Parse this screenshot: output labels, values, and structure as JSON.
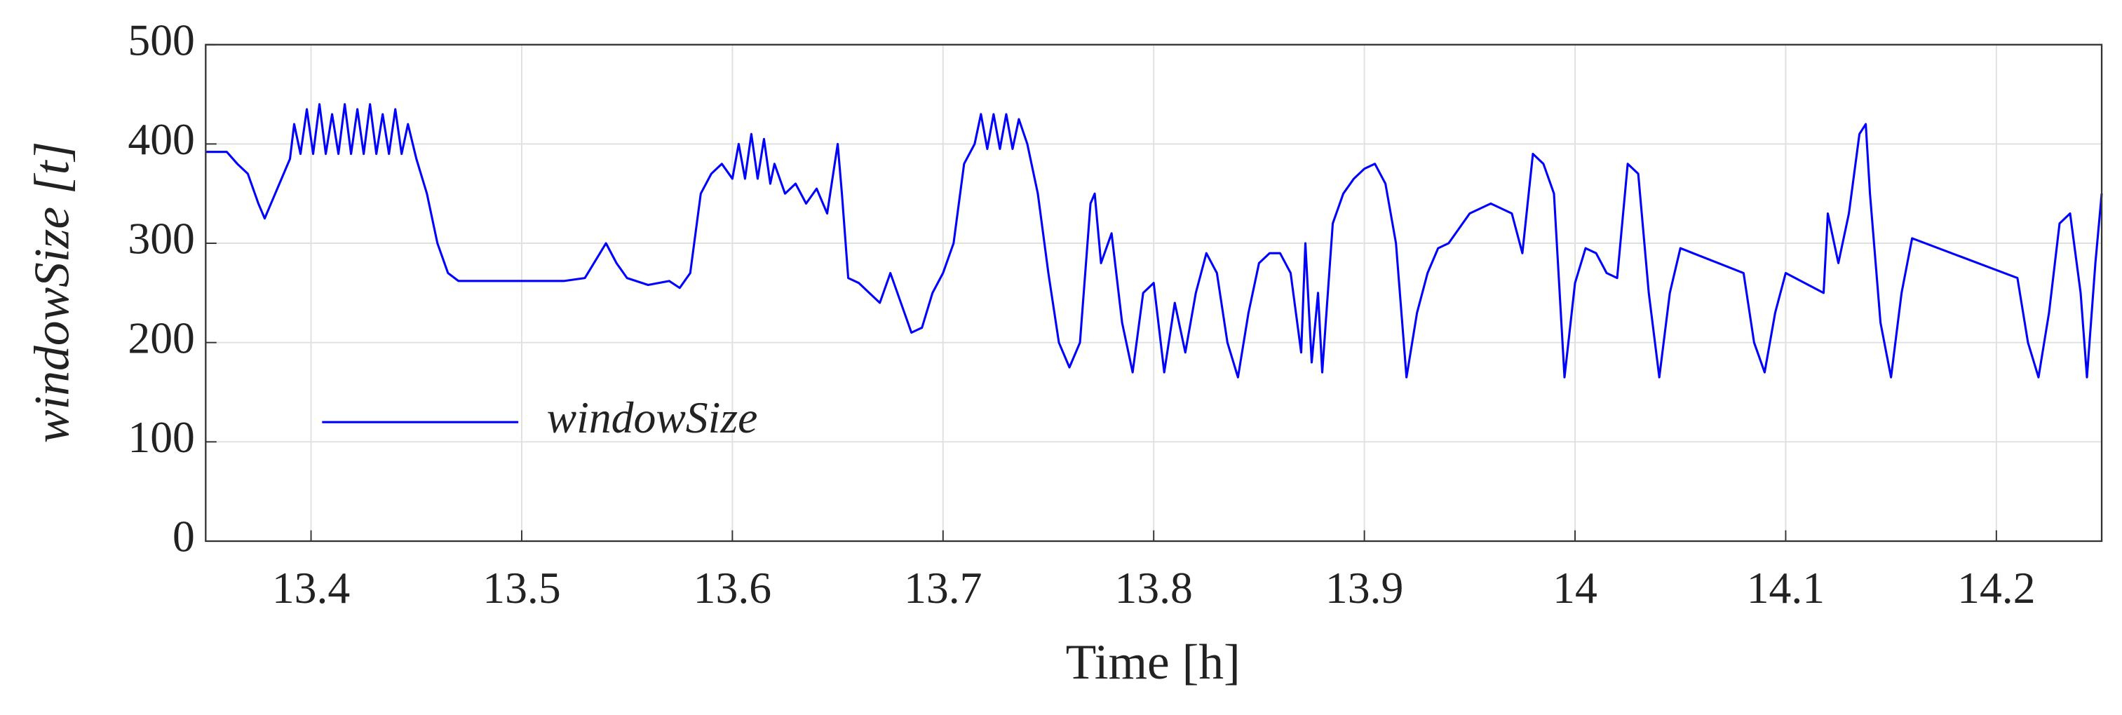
{
  "chart_data": {
    "type": "line",
    "xlabel": "Time [h]",
    "ylabel": "windowSize [t]",
    "xlim": [
      13.35,
      14.25
    ],
    "ylim": [
      0,
      500
    ],
    "xticks": [
      13.4,
      13.5,
      13.6,
      13.7,
      13.8,
      13.9,
      14,
      14.1,
      14.2
    ],
    "yticks": [
      0,
      100,
      200,
      300,
      400,
      500
    ],
    "grid": true,
    "legend": "lower left",
    "x": [
      13.35,
      13.36,
      13.365,
      13.37,
      13.375,
      13.378,
      13.38,
      13.385,
      13.39,
      13.392,
      13.395,
      13.398,
      13.401,
      13.404,
      13.407,
      13.41,
      13.413,
      13.416,
      13.419,
      13.422,
      13.425,
      13.428,
      13.431,
      13.434,
      13.437,
      13.44,
      13.443,
      13.446,
      13.45,
      13.455,
      13.46,
      13.465,
      13.47,
      13.5,
      13.52,
      13.53,
      13.54,
      13.545,
      13.55,
      13.56,
      13.57,
      13.575,
      13.58,
      13.585,
      13.59,
      13.595,
      13.6,
      13.603,
      13.606,
      13.609,
      13.612,
      13.615,
      13.618,
      13.62,
      13.625,
      13.63,
      13.635,
      13.64,
      13.645,
      13.65,
      13.652,
      13.655,
      13.66,
      13.665,
      13.67,
      13.675,
      13.68,
      13.685,
      13.69,
      13.695,
      13.7,
      13.705,
      13.71,
      13.715,
      13.718,
      13.721,
      13.724,
      13.727,
      13.73,
      13.733,
      13.736,
      13.74,
      13.745,
      13.75,
      13.755,
      13.76,
      13.765,
      13.77,
      13.772,
      13.775,
      13.78,
      13.785,
      13.79,
      13.795,
      13.8,
      13.805,
      13.81,
      13.815,
      13.82,
      13.825,
      13.83,
      13.835,
      13.84,
      13.845,
      13.85,
      13.855,
      13.86,
      13.865,
      13.87,
      13.872,
      13.875,
      13.878,
      13.88,
      13.885,
      13.89,
      13.895,
      13.9,
      13.905,
      13.91,
      13.915,
      13.92,
      13.925,
      13.93,
      13.935,
      13.94,
      13.95,
      13.96,
      13.97,
      13.975,
      13.98,
      13.985,
      13.99,
      13.995,
      14.0,
      14.005,
      14.01,
      14.015,
      14.02,
      14.025,
      14.03,
      14.035,
      14.04,
      14.045,
      14.05,
      14.08,
      14.085,
      14.09,
      14.095,
      14.1,
      14.118,
      14.12,
      14.125,
      14.13,
      14.135,
      14.138,
      14.14,
      14.145,
      14.15,
      14.155,
      14.16,
      14.21,
      14.215,
      14.22,
      14.225,
      14.23,
      14.235,
      14.24,
      14.243,
      14.247,
      14.25
    ],
    "series": [
      {
        "name": "windowSize",
        "color": "#0000ff",
        "values": [
          392,
          392,
          380,
          370,
          340,
          325,
          335,
          360,
          385,
          420,
          390,
          435,
          390,
          440,
          390,
          430,
          390,
          440,
          390,
          435,
          390,
          440,
          390,
          430,
          390,
          435,
          390,
          420,
          385,
          350,
          300,
          270,
          262,
          262,
          262,
          265,
          300,
          280,
          265,
          258,
          262,
          255,
          270,
          350,
          370,
          380,
          365,
          400,
          365,
          410,
          365,
          405,
          360,
          380,
          350,
          360,
          340,
          355,
          330,
          400,
          350,
          265,
          260,
          250,
          240,
          270,
          240,
          210,
          215,
          250,
          270,
          300,
          380,
          400,
          430,
          395,
          430,
          395,
          430,
          395,
          425,
          400,
          350,
          270,
          200,
          175,
          200,
          340,
          350,
          280,
          310,
          220,
          170,
          250,
          260,
          170,
          240,
          190,
          250,
          290,
          270,
          200,
          165,
          230,
          280,
          290,
          290,
          270,
          190,
          300,
          180,
          250,
          170,
          320,
          350,
          365,
          375,
          380,
          360,
          300,
          165,
          230,
          270,
          295,
          300,
          330,
          340,
          330,
          290,
          390,
          380,
          350,
          165,
          260,
          295,
          290,
          270,
          265,
          380,
          370,
          250,
          165,
          250,
          295,
          270,
          200,
          170,
          230,
          270,
          250,
          330,
          280,
          330,
          410,
          420,
          350,
          220,
          165,
          250,
          305,
          265,
          200,
          165,
          230,
          320,
          330,
          250,
          165,
          280,
          350
        ]
      }
    ]
  }
}
